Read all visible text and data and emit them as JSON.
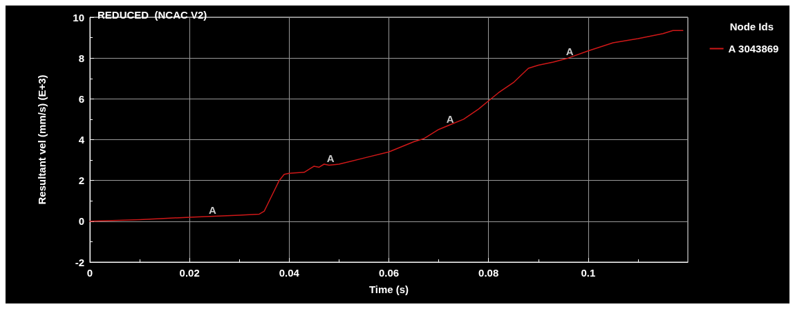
{
  "chart_data": {
    "type": "line",
    "title": "REDUCED  (NCAC V2)",
    "xlabel": "Time (s)",
    "ylabel": "Resultant vel (mm/s) (E+3)",
    "legend_title": "Node Ids",
    "legend": "top right",
    "grid": true,
    "marker": "none",
    "line_style": "solid",
    "xlim": [
      0,
      0.12
    ],
    "xticks": [
      0,
      0.02,
      0.04,
      0.06,
      0.08,
      0.1
    ],
    "ylim": [
      -2,
      10
    ],
    "yticks": [
      -2,
      0,
      2,
      4,
      6,
      8,
      10
    ],
    "x": [
      0,
      0.01,
      0.02,
      0.03,
      0.034,
      0.035,
      0.036,
      0.037,
      0.038,
      0.039,
      0.04,
      0.043,
      0.044,
      0.045,
      0.046,
      0.047,
      0.048,
      0.05,
      0.055,
      0.06,
      0.065,
      0.067,
      0.07,
      0.072,
      0.075,
      0.078,
      0.08,
      0.082,
      0.085,
      0.088,
      0.09,
      0.093,
      0.096,
      0.1,
      0.105,
      0.11,
      0.115,
      0.117,
      0.119
    ],
    "series": [
      {
        "name": "A 3043869",
        "color": "#d01818",
        "values": [
          0,
          0.08,
          0.2,
          0.3,
          0.35,
          0.5,
          1.0,
          1.5,
          2.0,
          2.3,
          2.35,
          2.4,
          2.55,
          2.7,
          2.65,
          2.8,
          2.75,
          2.8,
          3.1,
          3.4,
          3.9,
          4.05,
          4.5,
          4.7,
          5.0,
          5.5,
          5.9,
          6.3,
          6.8,
          7.5,
          7.65,
          7.8,
          8.0,
          8.35,
          8.75,
          8.95,
          9.2,
          9.35,
          9.35
        ]
      }
    ],
    "annotations": [
      {
        "text": "A",
        "x": 0.0246,
        "y": 0.22
      },
      {
        "text": "A",
        "x": 0.0483,
        "y": 2.75
      },
      {
        "text": "A",
        "x": 0.0723,
        "y": 4.7
      },
      {
        "text": "A",
        "x": 0.0963,
        "y": 8.0
      }
    ]
  }
}
